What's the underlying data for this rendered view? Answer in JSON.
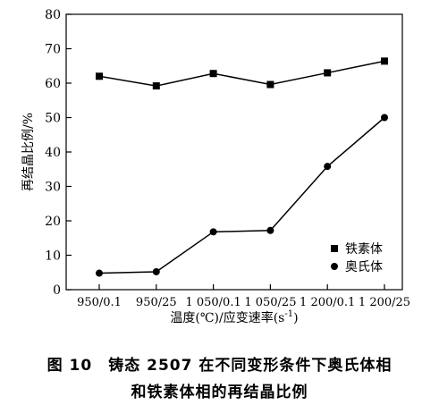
{
  "chart_data": {
    "type": "line",
    "categories": [
      "950/0.1",
      "950/25",
      "1 050/0.1",
      "1 050/25",
      "1 200/0.1",
      "1 200/25"
    ],
    "series": [
      {
        "name": "铁素体",
        "marker": "square",
        "values": [
          62,
          59.2,
          62.8,
          59.6,
          63,
          66.4
        ]
      },
      {
        "name": "奥氏体",
        "marker": "circle",
        "values": [
          4.8,
          5.2,
          16.8,
          17.2,
          35.8,
          50
        ]
      }
    ],
    "xlabel": "温度(℃)/应变速率(s",
    "xlabel_sup": "-1",
    "xlabel_end": ")",
    "ylabel": "再结晶比例/%",
    "ylim": [
      0,
      80
    ],
    "yticks": [
      0,
      10,
      20,
      30,
      40,
      50,
      60,
      70,
      80
    ],
    "grid": false,
    "legend_position": "lower-right",
    "color": "#000000"
  },
  "caption": {
    "line1": "图 10　铸态 2507 在不同变形条件下奥氏体相",
    "line2": "和铁素体相的再结晶比例"
  }
}
